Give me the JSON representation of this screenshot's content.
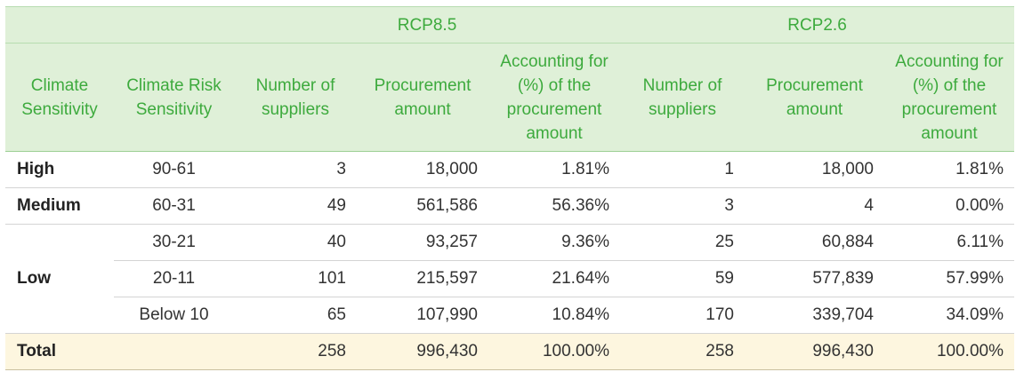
{
  "header": {
    "group_rcp85": "RCP8.5",
    "group_rcp26": "RCP2.6",
    "col_climate_sensitivity": "Climate Sensitivity",
    "col_risk_sensitivity": "Climate Risk Sensitivity",
    "col_suppliers": "Number of suppliers",
    "col_amount": "Procurement amount",
    "col_share": "Accounting for (%) of the procurement amount"
  },
  "rows": [
    {
      "category": "High",
      "range": "90-61",
      "s85": "3",
      "a85": "18,000",
      "p85": "1.81%",
      "s26": "1",
      "a26": "18,000",
      "p26": "1.81%"
    },
    {
      "category": "Medium",
      "range": "60-31",
      "s85": "49",
      "a85": "561,586",
      "p85": "56.36%",
      "s26": "3",
      "a26": "4",
      "p26": "0.00%"
    },
    {
      "category": "Low",
      "range": "30-21",
      "s85": "40",
      "a85": "93,257",
      "p85": "9.36%",
      "s26": "25",
      "a26": "60,884",
      "p26": "6.11%"
    },
    {
      "category": "",
      "range": "20-11",
      "s85": "101",
      "a85": "215,597",
      "p85": "21.64%",
      "s26": "59",
      "a26": "577,839",
      "p26": "57.99%"
    },
    {
      "category": "",
      "range": "Below 10",
      "s85": "65",
      "a85": "107,990",
      "p85": "10.84%",
      "s26": "170",
      "a26": "339,704",
      "p26": "34.09%"
    }
  ],
  "total": {
    "label": "Total",
    "s85": "258",
    "a85": "996,430",
    "p85": "100.00%",
    "s26": "258",
    "a26": "996,430",
    "p26": "100.00%"
  }
}
